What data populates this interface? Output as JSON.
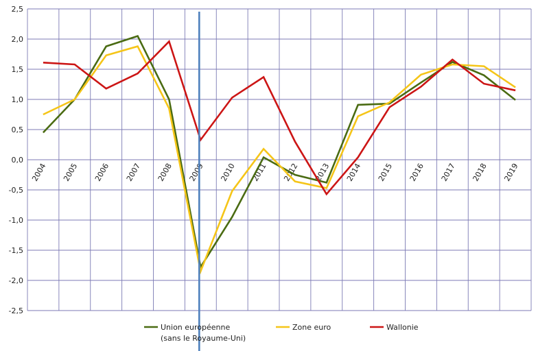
{
  "chart_data": {
    "type": "line",
    "title": "",
    "xlabel": "",
    "ylabel": "",
    "categories": [
      "2004",
      "2005",
      "2006",
      "2007",
      "2008",
      "2009",
      "2010",
      "2011",
      "2012",
      "2013",
      "2014",
      "2015",
      "2016",
      "2017",
      "2018",
      "2019"
    ],
    "ylim": [
      -2.5,
      2.5
    ],
    "yticks": [
      2.5,
      2.0,
      1.5,
      1.0,
      0.5,
      0.0,
      -0.5,
      -1.0,
      -1.5,
      -2.0,
      -2.5
    ],
    "ytick_labels": [
      "2,5",
      "2,0",
      "1,5",
      "1,0",
      "0,5",
      "0,0",
      "-0,5",
      "-1,0",
      "-1,5",
      "-2,0",
      "-2,5"
    ],
    "grid": true,
    "legend_position": "bottom",
    "marker_line": {
      "category": "2009",
      "color": "#4f81bd"
    },
    "series": [
      {
        "name": "Union européenne",
        "name_line2": "(sans le Royaume-Uni)",
        "color": "#4a6b12",
        "values": [
          0.45,
          1.0,
          1.88,
          2.05,
          1.0,
          -1.78,
          -0.95,
          0.04,
          -0.25,
          -0.38,
          0.91,
          0.93,
          1.28,
          1.62,
          1.4,
          0.99
        ]
      },
      {
        "name": "Zone euro",
        "name_line2": "",
        "color": "#f5c518",
        "values": [
          0.75,
          1.0,
          1.73,
          1.88,
          0.85,
          -1.85,
          -0.52,
          0.18,
          -0.36,
          -0.47,
          0.72,
          0.95,
          1.41,
          1.58,
          1.55,
          1.2
        ]
      },
      {
        "name": "Wallonie",
        "name_line2": "",
        "color": "#cc1515",
        "values": [
          1.61,
          1.58,
          1.18,
          1.43,
          1.96,
          0.33,
          1.03,
          1.37,
          0.3,
          -0.57,
          0.04,
          0.87,
          1.21,
          1.66,
          1.26,
          1.15
        ]
      }
    ]
  }
}
